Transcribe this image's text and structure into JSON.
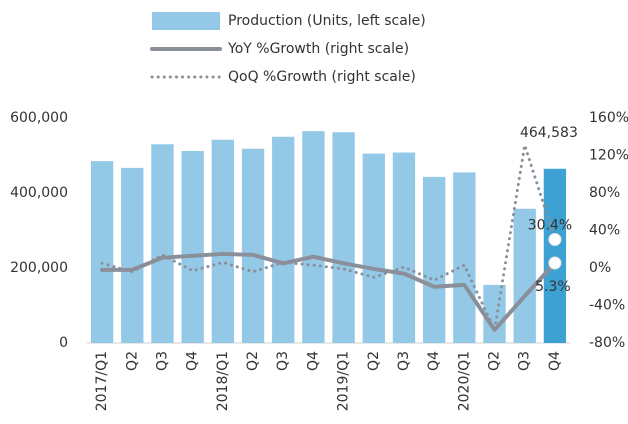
{
  "chart_data": {
    "type": "bar",
    "categories": [
      "2017/Q1",
      "Q2",
      "Q3",
      "Q4",
      "2018/Q1",
      "Q2",
      "Q3",
      "Q4",
      "2019/Q1",
      "Q2",
      "Q3",
      "Q4",
      "2020/Q1",
      "Q2",
      "Q3",
      "Q4"
    ],
    "series": [
      {
        "name": "Production (Units, left scale)",
        "type": "bar",
        "color": "#93c9e6",
        "colors": [
          "#93c9e6",
          "#93c9e6",
          "#93c9e6",
          "#93c9e6",
          "#93c9e6",
          "#93c9e6",
          "#93c9e6",
          "#93c9e6",
          "#93c9e6",
          "#93c9e6",
          "#93c9e6",
          "#93c9e6",
          "#93c9e6",
          "#93c9e6",
          "#93c9e6",
          "#3ea1d4"
        ],
        "values": [
          485000,
          467000,
          530000,
          512000,
          542000,
          518000,
          550000,
          565000,
          562000,
          505000,
          508000,
          443000,
          455000,
          155000,
          358000,
          464583
        ],
        "value_labels": [
          null,
          null,
          null,
          null,
          null,
          null,
          null,
          null,
          null,
          null,
          null,
          null,
          null,
          null,
          null,
          "464,583"
        ]
      },
      {
        "name": "YoY %Growth (right scale)",
        "type": "line",
        "axis": "y2",
        "color": "#8a8f99",
        "style": "solid",
        "values": [
          -2,
          -2,
          11,
          13,
          15,
          14,
          5,
          12,
          5,
          -1,
          -6,
          -20,
          -18,
          -66,
          -30,
          5.3
        ],
        "value_labels": [
          null,
          null,
          null,
          null,
          null,
          null,
          null,
          null,
          null,
          null,
          null,
          null,
          null,
          null,
          null,
          "5.3%"
        ]
      },
      {
        "name": "QoQ %Growth (right scale)",
        "type": "line",
        "axis": "y2",
        "color": "#8a8f99",
        "style": "dotted",
        "values": [
          5,
          -4,
          14,
          -3,
          6,
          -4,
          6,
          3,
          -1,
          -10,
          1,
          -13,
          3,
          -66,
          131,
          30.4
        ],
        "value_labels": [
          null,
          null,
          null,
          null,
          null,
          null,
          null,
          null,
          null,
          null,
          null,
          null,
          null,
          null,
          null,
          "30.4%"
        ]
      }
    ],
    "ylim": [
      0,
      600000
    ],
    "yticks": [
      0,
      {
        "value": 200000,
        "label": "200,000"
      },
      {
        "value": 400000,
        "label": "400,000"
      },
      {
        "value": 600000,
        "label": "600,000"
      }
    ],
    "y2lim": [
      -80,
      160
    ],
    "y2ticks": [
      {
        "value": -80,
        "label": "-80%"
      },
      {
        "value": -40,
        "label": "-40%"
      },
      {
        "value": 0,
        "label": "0%"
      },
      {
        "value": 40,
        "label": "40%"
      },
      {
        "value": 80,
        "label": "80%"
      },
      {
        "value": 120,
        "label": "120%"
      },
      {
        "value": 160,
        "label": "160%"
      }
    ],
    "grid": false,
    "legend": "top"
  }
}
